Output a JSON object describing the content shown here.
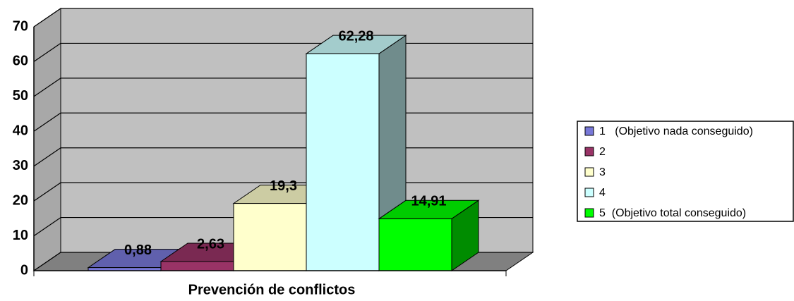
{
  "chart_data": {
    "type": "bar",
    "three_d": true,
    "categories": [
      "Prevención de conflictos"
    ],
    "series": [
      {
        "name": "1   (Objetivo nada conseguido)",
        "color": "#7878d8",
        "values": [
          0.88
        ],
        "value_labels": [
          "0,88"
        ]
      },
      {
        "name": "2",
        "color": "#993366",
        "values": [
          2.63
        ],
        "value_labels": [
          "2,63"
        ]
      },
      {
        "name": "3",
        "color": "#ffffcc",
        "values": [
          19.3
        ],
        "value_labels": [
          "19,3"
        ]
      },
      {
        "name": "4",
        "color": "#ccffff",
        "values": [
          62.28
        ],
        "value_labels": [
          "62,28"
        ]
      },
      {
        "name": "5  (Objetivo total conseguido)",
        "color": "#00ff00",
        "values": [
          14.91
        ],
        "value_labels": [
          "14,91"
        ]
      }
    ],
    "ylim": [
      0,
      70
    ],
    "yticks": [
      0,
      10,
      20,
      30,
      40,
      50,
      60,
      70
    ],
    "grid": true,
    "legend": "right"
  }
}
